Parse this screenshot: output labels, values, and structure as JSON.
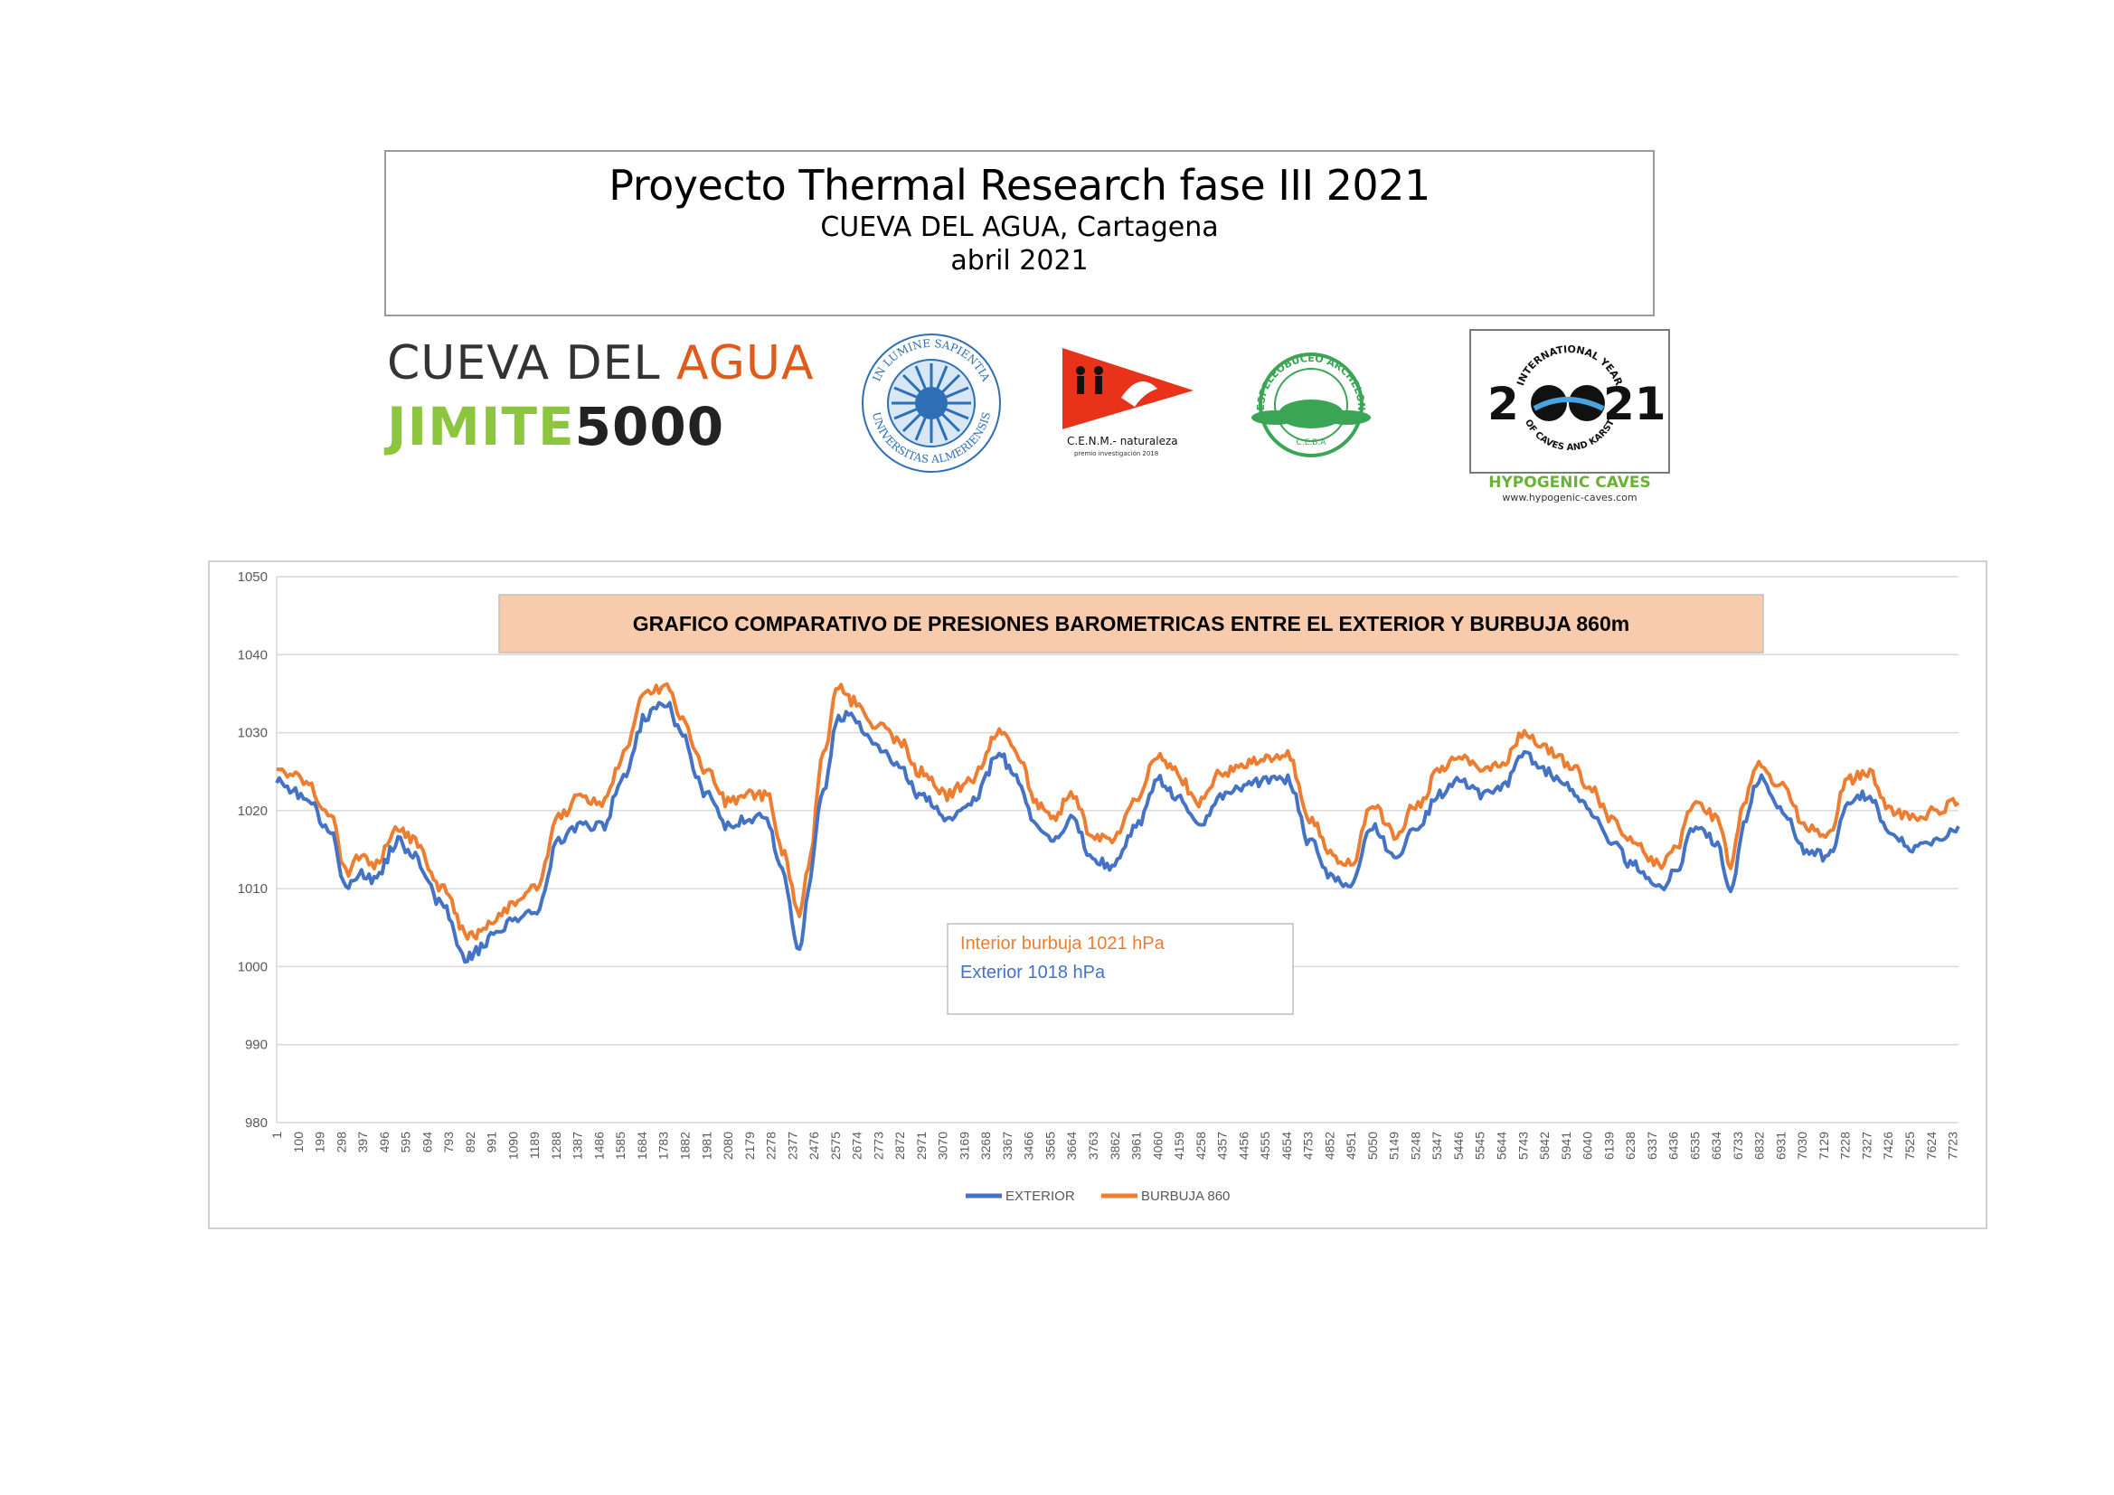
{
  "header": {
    "title": "Proyecto Thermal Research fase III 2021",
    "subtitle": "CUEVA DEL AGUA, Cartagena",
    "date": "abril 2021"
  },
  "logos": {
    "cueva_line1_a": "CUEVA DEL ",
    "cueva_line1_b": "AGUA",
    "cueva_line2_a": "JIMITE",
    "cueva_line2_b": "5000",
    "univ_text_top": "IN LUMINE SAPIENTIA",
    "univ_text_bottom": "UNIVERSITAS ALMERIENSIS",
    "cenm_text": "C.E.N.M.- naturaleza",
    "cenm_subtext": "premio investigación 2018",
    "archelon_text": "ESPELEOBUCEO ARCHELON",
    "archelon_sub": "C.E.B.A",
    "hypo_top": "INTERNATIONAL YEAR",
    "hypo_bottom": "OF CAVES AND KARST",
    "hypo_year_left": "2",
    "hypo_year_right": "21",
    "hypo_caption": "HYPOGENIC CAVES",
    "hypo_url": "www.hypogenic-caves.com"
  },
  "colors": {
    "exterior": "#4472c4",
    "burbuja": "#ed7d31",
    "title_fill": "#f8cbad",
    "grid": "#d9d9d9"
  },
  "chart_data": {
    "type": "line",
    "title": "GRAFICO COMPARATIVO DE PRESIONES BAROMETRICAS ENTRE EL EXTERIOR Y BURBUJA 860m",
    "ylim": [
      980,
      1050
    ],
    "yticks": [
      980,
      990,
      1000,
      1010,
      1020,
      1030,
      1040,
      1050
    ],
    "xlim": [
      1,
      7750
    ],
    "xticks": [
      1,
      100,
      199,
      298,
      397,
      496,
      595,
      694,
      793,
      892,
      991,
      1090,
      1189,
      1288,
      1387,
      1486,
      1585,
      1684,
      1783,
      1882,
      1981,
      2080,
      2179,
      2278,
      2377,
      2476,
      2575,
      2674,
      2773,
      2872,
      2971,
      3070,
      3169,
      3268,
      3367,
      3466,
      3565,
      3664,
      3763,
      3862,
      3961,
      4060,
      4159,
      4258,
      4357,
      4456,
      4555,
      4654,
      4753,
      4852,
      4951,
      5050,
      5149,
      5248,
      5347,
      5446,
      5545,
      5644,
      5743,
      5842,
      5941,
      6040,
      6139,
      6238,
      6337,
      6436,
      6535,
      6634,
      6733,
      6832,
      6931,
      7030,
      7129,
      7228,
      7327,
      7426,
      7525,
      7624,
      7723
    ],
    "legend": "bottom",
    "series": [
      {
        "name": "EXTERIOR",
        "x": [
          1,
          50,
          150,
          250,
          320,
          380,
          450,
          560,
          640,
          760,
          880,
          920,
          1000,
          1100,
          1200,
          1300,
          1400,
          1500,
          1600,
          1700,
          1800,
          1860,
          1980,
          2080,
          2180,
          2260,
          2330,
          2410,
          2450,
          2520,
          2590,
          2660,
          2760,
          2870,
          2960,
          3090,
          3200,
          3330,
          3420,
          3500,
          3580,
          3660,
          3760,
          3850,
          3960,
          4060,
          4140,
          4250,
          4360,
          4470,
          4560,
          4660,
          4760,
          4880,
          4950,
          5050,
          5150,
          5260,
          5360,
          5450,
          5560,
          5650,
          5750,
          5850,
          5960,
          6050,
          6150,
          6250,
          6370,
          6440,
          6540,
          6640,
          6700,
          6760,
          6830,
          6940,
          7050,
          7150,
          7240,
          7330,
          7440,
          7550,
          7650,
          7750
        ],
        "y": [
          1024,
          1023,
          1021,
          1017,
          1010,
          1012,
          1011,
          1016,
          1014,
          1008,
          1001,
          1002,
          1004,
          1006,
          1007,
          1016,
          1018,
          1018,
          1024,
          1032,
          1034,
          1030,
          1022,
          1018,
          1019,
          1019,
          1012,
          1002,
          1010,
          1023,
          1032,
          1032,
          1028,
          1026,
          1022,
          1019,
          1021,
          1027,
          1024,
          1018,
          1016,
          1019,
          1014,
          1013,
          1018,
          1024,
          1022,
          1018,
          1022,
          1023,
          1024,
          1024,
          1016,
          1011,
          1010,
          1018,
          1014,
          1018,
          1022,
          1024,
          1022,
          1023,
          1027,
          1025,
          1023,
          1020,
          1016,
          1013,
          1010,
          1012,
          1018,
          1016,
          1009,
          1018,
          1024,
          1020,
          1015,
          1014,
          1021,
          1022,
          1017,
          1015,
          1016,
          1018
        ]
      },
      {
        "name": "BURBUJA 860",
        "x": [
          1,
          50,
          150,
          250,
          320,
          380,
          450,
          560,
          640,
          760,
          880,
          920,
          1000,
          1100,
          1200,
          1300,
          1400,
          1500,
          1600,
          1700,
          1800,
          1860,
          1980,
          2080,
          2180,
          2260,
          2330,
          2410,
          2450,
          2520,
          2590,
          2660,
          2760,
          2870,
          2960,
          3090,
          3200,
          3330,
          3420,
          3500,
          3580,
          3660,
          3760,
          3850,
          3960,
          4060,
          4140,
          4250,
          4360,
          4470,
          4560,
          4660,
          4760,
          4880,
          4950,
          5050,
          5150,
          5260,
          5360,
          5450,
          5560,
          5650,
          5750,
          5850,
          5960,
          6050,
          6150,
          6250,
          6370,
          6440,
          6540,
          6640,
          6700,
          6760,
          6830,
          6940,
          7050,
          7150,
          7240,
          7330,
          7440,
          7550,
          7650,
          7750
        ],
        "y": [
          1026,
          1025,
          1023,
          1019,
          1012,
          1014,
          1013,
          1018,
          1016,
          1010,
          1004,
          1004,
          1006,
          1008,
          1010,
          1019,
          1022,
          1021,
          1027,
          1035,
          1036,
          1032,
          1025,
          1021,
          1022,
          1022,
          1015,
          1007,
          1013,
          1027,
          1036,
          1034,
          1031,
          1029,
          1025,
          1022,
          1024,
          1030,
          1027,
          1021,
          1019,
          1022,
          1017,
          1016,
          1021,
          1027,
          1025,
          1021,
          1025,
          1026,
          1027,
          1027,
          1019,
          1014,
          1013,
          1021,
          1017,
          1021,
          1025,
          1027,
          1025,
          1026,
          1030,
          1028,
          1026,
          1023,
          1019,
          1016,
          1013,
          1015,
          1021,
          1019,
          1013,
          1021,
          1026,
          1023,
          1018,
          1017,
          1024,
          1025,
          1020,
          1019,
          1020,
          1021
        ]
      }
    ],
    "annotation": {
      "interior": "Interior burbuja 1021 hPa",
      "exterior": "Exterior 1018 hPa"
    }
  }
}
